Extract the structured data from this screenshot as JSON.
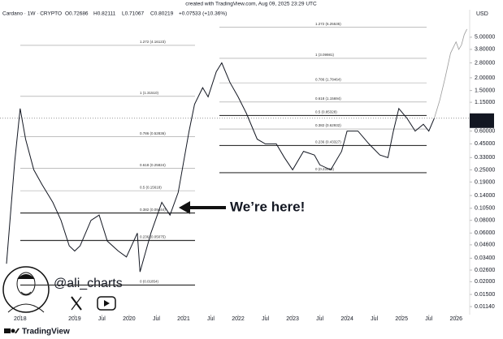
{
  "chart_data": {
    "type": "line",
    "header": "created with TradingView.com, Aug 09, 2025 23:29 UTC",
    "symbol": "Cardano · 1W · CRYPTO",
    "ohlc": [
      "O0.72686",
      "H0.82111",
      "L0.71067",
      "C0.80219",
      "+0.07533 (+10.36%)"
    ],
    "currency": "USD",
    "price_label": "0.80219",
    "countdown": "1d 1h",
    "annotation": "We’re here!",
    "handle": "@ali_charts",
    "brand": "TradingView",
    "log_scale": true,
    "grid": false,
    "xlim": [
      2017.63,
      2026.25
    ],
    "ylim": [
      0.0095,
      9.3
    ],
    "xticks": [
      {
        "value": 2018,
        "label": "2018"
      },
      {
        "value": 2019,
        "label": "2019"
      },
      {
        "value": 2019.5,
        "label": "Jul"
      },
      {
        "value": 2020,
        "label": "2020"
      },
      {
        "value": 2020.5,
        "label": "Jul"
      },
      {
        "value": 2021,
        "label": "2021"
      },
      {
        "value": 2021.5,
        "label": "Jul"
      },
      {
        "value": 2022,
        "label": "2022"
      },
      {
        "value": 2022.5,
        "label": "Jul"
      },
      {
        "value": 2023,
        "label": "2023"
      },
      {
        "value": 2023.5,
        "label": "Jul"
      },
      {
        "value": 2024,
        "label": "2024"
      },
      {
        "value": 2024.5,
        "label": "Jul"
      },
      {
        "value": 2025,
        "label": "2025"
      },
      {
        "value": 2025.5,
        "label": "Jul"
      },
      {
        "value": 2026,
        "label": "2026"
      }
    ],
    "yticks": [
      {
        "value": 5,
        "label": "5.00000"
      },
      {
        "value": 3.8,
        "label": "3.80000"
      },
      {
        "value": 2.8,
        "label": "2.80000"
      },
      {
        "value": 2,
        "label": "2.00000"
      },
      {
        "value": 1.5,
        "label": "1.50000"
      },
      {
        "value": 1.15,
        "label": "1.15000"
      },
      {
        "value": 0.6,
        "label": "0.60000"
      },
      {
        "value": 0.45,
        "label": "0.45000"
      },
      {
        "value": 0.33,
        "label": "0.33000"
      },
      {
        "value": 0.25,
        "label": "0.25000"
      },
      {
        "value": 0.19,
        "label": "0.19000"
      },
      {
        "value": 0.14,
        "label": "0.14000"
      },
      {
        "value": 0.105,
        "label": "0.10500"
      },
      {
        "value": 0.08,
        "label": "0.08000"
      },
      {
        "value": 0.06,
        "label": "0.06000"
      },
      {
        "value": 0.046,
        "label": "0.04600"
      },
      {
        "value": 0.034,
        "label": "0.03400"
      },
      {
        "value": 0.026,
        "label": "0.02600"
      },
      {
        "value": 0.02,
        "label": "0.02000"
      },
      {
        "value": 0.015,
        "label": "0.01500"
      },
      {
        "value": 0.0114,
        "label": "0.01140"
      }
    ],
    "series": [
      {
        "color": "#131722",
        "x": [
          2017.75,
          2017.9,
          2018.0,
          2018.1,
          2018.25,
          2018.4,
          2018.6,
          2018.75,
          2018.9,
          2019.0,
          2019.1,
          2019.3,
          2019.45,
          2019.6,
          2019.8,
          2019.95,
          2020.15,
          2020.2,
          2020.4,
          2020.6,
          2020.75,
          2020.9,
          2021.1,
          2021.2,
          2021.35,
          2021.45,
          2021.6,
          2021.7,
          2021.85,
          2022.0,
          2022.15,
          2022.35,
          2022.5,
          2022.7,
          2022.85,
          2023.0,
          2023.2,
          2023.4,
          2023.5,
          2023.7,
          2023.9,
          2024.0,
          2024.2,
          2024.4,
          2024.6,
          2024.75,
          2024.85,
          2024.95,
          2025.1,
          2025.25,
          2025.4,
          2025.5,
          2025.6
        ],
        "values": [
          0.03,
          0.3,
          1.0,
          0.5,
          0.25,
          0.18,
          0.12,
          0.08,
          0.045,
          0.04,
          0.045,
          0.08,
          0.09,
          0.05,
          0.04,
          0.035,
          0.06,
          0.025,
          0.06,
          0.12,
          0.09,
          0.15,
          0.6,
          1.1,
          1.6,
          1.3,
          2.3,
          2.8,
          1.8,
          1.3,
          0.9,
          0.5,
          0.45,
          0.45,
          0.33,
          0.25,
          0.38,
          0.35,
          0.28,
          0.25,
          0.38,
          0.6,
          0.6,
          0.45,
          0.35,
          0.33,
          0.6,
          1.0,
          0.8,
          0.6,
          0.7,
          0.6,
          0.80219
        ]
      },
      {
        "color": "#9a9a9a",
        "x": [
          2025.6,
          2025.7,
          2025.8,
          2025.9,
          2026.0,
          2026.05,
          2026.1,
          2026.15,
          2026.2
        ],
        "values": [
          0.8,
          1.2,
          2.0,
          3.5,
          4.5,
          3.8,
          4.2,
          5.3,
          6.0
        ]
      }
    ],
    "fib_sets": [
      {
        "levels": [
          {
            "value": 4.16123,
            "label": "1.272 (4.16123)"
          },
          {
            "value": 1.3151,
            "label": "1 (1.31510)"
          },
          {
            "value": 0.52836,
            "label": "0.786 (0.52836)"
          },
          {
            "value": 0.25824,
            "label": "0.618 (0.25824)"
          },
          {
            "value": 0.15618,
            "label": "0.5 (0.15618)"
          },
          {
            "value": 0.09444,
            "label": "0.382 (0.09444)"
          },
          {
            "value": 0.05075,
            "label": "0.236 (0.05075)"
          },
          {
            "value": 0.01854,
            "label": "0 (0.01854)"
          }
        ]
      },
      {
        "levels": [
          {
            "value": 6.25535,
            "label": "1.272 (6.25535)"
          },
          {
            "value": 3.09981,
            "label": "1 (3.09981)"
          },
          {
            "value": 1.78464,
            "label": "0.786 (1.78464)"
          },
          {
            "value": 1.15694,
            "label": "0.618 (1.15694)"
          },
          {
            "value": 0.85328,
            "label": "0.5 (0.85328)"
          },
          {
            "value": 0.62932,
            "label": "0.382 (0.62932)"
          },
          {
            "value": 0.43327,
            "label": "0.236 (0.43327)"
          },
          {
            "value": 0.23458,
            "label": "0 (0.23458)"
          }
        ]
      }
    ]
  }
}
